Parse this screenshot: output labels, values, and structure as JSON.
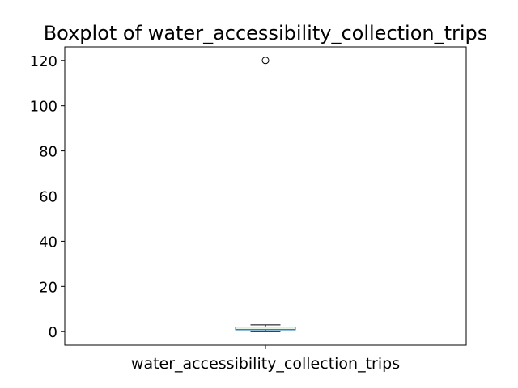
{
  "chart_data": {
    "type": "boxplot",
    "title": "Boxplot of water_accessibility_collection_trips",
    "categories": [
      "water_accessibility_collection_trips"
    ],
    "series": [
      {
        "stats": {
          "whisker_low": 0,
          "q1": 0.8,
          "median": 1,
          "q3": 2,
          "whisker_high": 3
        },
        "outliers": [
          120
        ]
      }
    ],
    "ylim": [
      -6,
      126
    ],
    "yticks": [
      0,
      20,
      40,
      60,
      80,
      100,
      120
    ],
    "grid": false,
    "colors": {
      "box": "#1f77b4",
      "median": "#2ca02c",
      "whisker": "#000000",
      "outlier": "#000000"
    }
  }
}
